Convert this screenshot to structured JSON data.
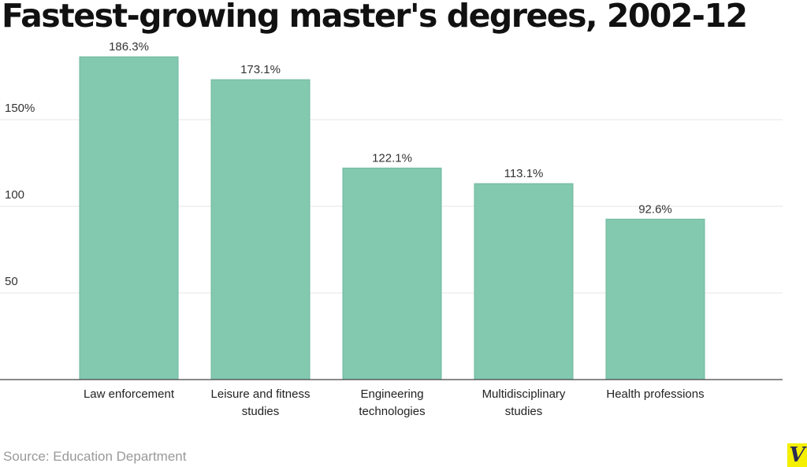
{
  "chart_data": {
    "type": "bar",
    "title": "Fastest-growing master's degrees, 2002-12",
    "categories": [
      [
        "Law enforcement"
      ],
      [
        "Leisure and fitness",
        "studies"
      ],
      [
        "Engineering",
        "technologies"
      ],
      [
        "Multidisciplinary",
        "studies"
      ],
      [
        "Health professions"
      ]
    ],
    "values": [
      186.3,
      173.1,
      122.1,
      113.1,
      92.6
    ],
    "data_labels": [
      "186.3%",
      "173.1%",
      "122.1%",
      "113.1%",
      "92.6%"
    ],
    "yticks": [
      50,
      100,
      150
    ],
    "ytick_labels": [
      "50",
      "100",
      "150%"
    ],
    "ylim": [
      0,
      195
    ],
    "xlabel": "",
    "ylabel": "",
    "grid": true,
    "bar_color": "#82c9b0",
    "bar_border": "#6fb89e",
    "source": "Source: Education Department",
    "logo": "V"
  }
}
